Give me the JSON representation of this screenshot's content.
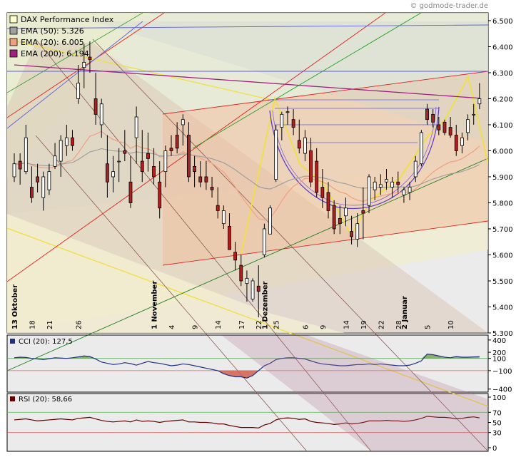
{
  "watermark": "© godmode-trader.de",
  "chart_data": [
    {
      "type": "candlestick",
      "legend": [
        {
          "label": "DAX Performance Index",
          "color": "#ffffcc"
        },
        {
          "label": "EMA (50): 5.326",
          "color": "#a0a0a0"
        },
        {
          "label": "EMA (20): 6.005",
          "color": "#f0a080"
        },
        {
          "label": "EMA (200): 6.194",
          "color": "#a02080"
        }
      ],
      "ylim": [
        5300,
        6530
      ],
      "yticks": [
        "6.500",
        "6.400",
        "6.300",
        "6.200",
        "6.100",
        "6.000",
        "5.900",
        "5.800",
        "5.700",
        "5.600",
        "5.500",
        "5.400",
        "5.300"
      ],
      "ytick_values": [
        6500,
        6400,
        6300,
        6200,
        6100,
        6000,
        5900,
        5800,
        5700,
        5600,
        5500,
        5400,
        5300
      ],
      "month_labels": [
        "13 Oktober",
        "1 November",
        "1 Dezember",
        "2 Januar"
      ],
      "day_labels": [
        "18",
        "21",
        "26",
        "4",
        "9",
        "14",
        "17",
        "22",
        "25",
        "6",
        "9",
        "14",
        "19",
        "22",
        "28",
        "5",
        "10"
      ],
      "candles": [
        [
          5900,
          5990,
          5880,
          5950
        ],
        [
          5960,
          5990,
          5870,
          5930
        ],
        [
          5920,
          6100,
          5910,
          6050
        ],
        [
          5860,
          5940,
          5800,
          5820
        ],
        [
          5900,
          5950,
          5840,
          5880
        ],
        [
          5820,
          5920,
          5770,
          5900
        ],
        [
          5850,
          5950,
          5830,
          5920
        ],
        [
          5940,
          6030,
          5930,
          5980
        ],
        [
          5960,
          6060,
          5900,
          6040
        ],
        [
          6020,
          6100,
          5980,
          6050
        ],
        [
          6050,
          6080,
          6000,
          6020
        ],
        [
          6200,
          6330,
          6180,
          6260
        ],
        [
          6320,
          6410,
          6240,
          6340
        ],
        [
          6360,
          6420,
          6300,
          6350
        ],
        [
          6200,
          6300,
          6100,
          6140
        ],
        [
          6100,
          6200,
          6050,
          6180
        ],
        [
          5950,
          6060,
          5820,
          5880
        ],
        [
          5900,
          5980,
          5840,
          5920
        ],
        [
          5960,
          6010,
          5880,
          5960
        ],
        [
          6000,
          6080,
          5960,
          5990
        ],
        [
          5880,
          5980,
          5780,
          5800
        ],
        [
          6050,
          6170,
          5950,
          6130
        ],
        [
          5960,
          6080,
          5880,
          5920
        ],
        [
          5990,
          6070,
          5920,
          5970
        ],
        [
          5940,
          6010,
          5870,
          5900
        ],
        [
          5880,
          5960,
          5740,
          5780
        ],
        [
          5920,
          6020,
          5860,
          6000
        ],
        [
          6010,
          6060,
          5980,
          6000
        ],
        [
          6060,
          6110,
          5990,
          6010
        ],
        [
          6100,
          6140,
          6020,
          6120
        ],
        [
          6060,
          6110,
          5880,
          5900
        ],
        [
          5940,
          5980,
          5860,
          5920
        ],
        [
          5900,
          5960,
          5860,
          5880
        ],
        [
          5900,
          5960,
          5850,
          5880
        ],
        [
          5860,
          5900,
          5820,
          5850
        ],
        [
          5790,
          5860,
          5740,
          5770
        ],
        [
          5720,
          5790,
          5700,
          5770
        ],
        [
          5710,
          5760,
          5620,
          5620
        ],
        [
          5610,
          5650,
          5540,
          5580
        ],
        [
          5560,
          5600,
          5480,
          5500
        ],
        [
          5490,
          5540,
          5420,
          5510
        ],
        [
          5430,
          5510,
          5420,
          5500
        ],
        [
          5480,
          5560,
          5360,
          5460
        ],
        [
          5600,
          5720,
          5590,
          5700
        ],
        [
          5680,
          5790,
          5680,
          5780
        ],
        [
          5890,
          6100,
          5880,
          6080
        ],
        [
          6090,
          6150,
          6040,
          6140
        ],
        [
          6150,
          6170,
          6100,
          6150
        ],
        [
          6120,
          6160,
          6060,
          6090
        ],
        [
          6040,
          6120,
          5990,
          6010
        ],
        [
          5990,
          6080,
          5960,
          6050
        ],
        [
          6000,
          6050,
          5860,
          5880
        ],
        [
          5960,
          6010,
          5820,
          5840
        ],
        [
          5860,
          5930,
          5780,
          5820
        ],
        [
          5840,
          5880,
          5740,
          5770
        ],
        [
          5790,
          5810,
          5680,
          5700
        ],
        [
          5740,
          5790,
          5680,
          5720
        ],
        [
          5750,
          5820,
          5710,
          5780
        ],
        [
          5690,
          5750,
          5640,
          5670
        ],
        [
          5660,
          5760,
          5630,
          5720
        ],
        [
          5770,
          5860,
          5660,
          5760
        ],
        [
          5790,
          5910,
          5760,
          5900
        ],
        [
          5850,
          5900,
          5810,
          5880
        ],
        [
          5860,
          5910,
          5830,
          5870
        ],
        [
          5880,
          5930,
          5850,
          5890
        ],
        [
          5860,
          5900,
          5820,
          5880
        ],
        [
          5880,
          5920,
          5840,
          5870
        ],
        [
          5830,
          5860,
          5800,
          5850
        ],
        [
          5840,
          5880,
          5810,
          5860
        ],
        [
          5900,
          5980,
          5880,
          5960
        ],
        [
          5950,
          6080,
          5940,
          6070
        ],
        [
          6160,
          6180,
          6100,
          6120
        ],
        [
          6140,
          6160,
          6090,
          6110
        ],
        [
          6100,
          6130,
          6060,
          6080
        ],
        [
          6110,
          6120,
          6060,
          6070
        ],
        [
          6090,
          6130,
          6050,
          6060
        ],
        [
          6060,
          6100,
          5980,
          6000
        ],
        [
          6020,
          6070,
          5990,
          6050
        ],
        [
          6070,
          6140,
          6040,
          6120
        ],
        [
          6140,
          6180,
          6100,
          6140
        ],
        [
          6180,
          6260,
          6160,
          6200
        ]
      ]
    },
    {
      "type": "line",
      "label": "CCI (20): 127,5",
      "yticks": [
        "400",
        "200",
        "100",
        "−100",
        "−400"
      ],
      "ytick_values": [
        400,
        200,
        100,
        -100,
        -400
      ],
      "series": [
        {
          "values": [
            110,
            120,
            115,
            100,
            90,
            80,
            95,
            110,
            105,
            100,
            110,
            125,
            140,
            130,
            90,
            40,
            20,
            0,
            10,
            30,
            15,
            -10,
            20,
            50,
            30,
            20,
            0,
            -20,
            -10,
            10,
            0,
            -20,
            -40,
            -60,
            -80,
            -100,
            -150,
            -180,
            -200,
            -200,
            -220,
            -180,
            -100,
            -20,
            20,
            80,
            100,
            110,
            110,
            100,
            90,
            60,
            30,
            10,
            0,
            -10,
            -20,
            -20,
            -10,
            0,
            0,
            10,
            0,
            10,
            0,
            -10,
            -20,
            -20,
            -10,
            20,
            60,
            170,
            160,
            140,
            120,
            110,
            130,
            120,
            120,
            125,
            127
          ]
        }
      ]
    },
    {
      "type": "line",
      "label": "RSI (20): 58,66",
      "yticks": [
        "100",
        "70",
        "50",
        "30",
        "0"
      ],
      "ytick_values": [
        100,
        70,
        50,
        30,
        0
      ],
      "series": [
        {
          "values": [
            55,
            56,
            57,
            55,
            53,
            54,
            55,
            56,
            57,
            56,
            55,
            58,
            59,
            60,
            57,
            54,
            52,
            51,
            52,
            53,
            51,
            55,
            52,
            53,
            52,
            50,
            52,
            53,
            54,
            55,
            51,
            51,
            50,
            50,
            49,
            47,
            47,
            44,
            42,
            40,
            40,
            40,
            39,
            45,
            48,
            55,
            58,
            59,
            58,
            56,
            57,
            52,
            50,
            49,
            48,
            46,
            47,
            49,
            47,
            48,
            50,
            53,
            53,
            53,
            54,
            53,
            53,
            52,
            53,
            55,
            58,
            62,
            61,
            60,
            60,
            59,
            57,
            58,
            60,
            61,
            59
          ]
        }
      ]
    }
  ]
}
